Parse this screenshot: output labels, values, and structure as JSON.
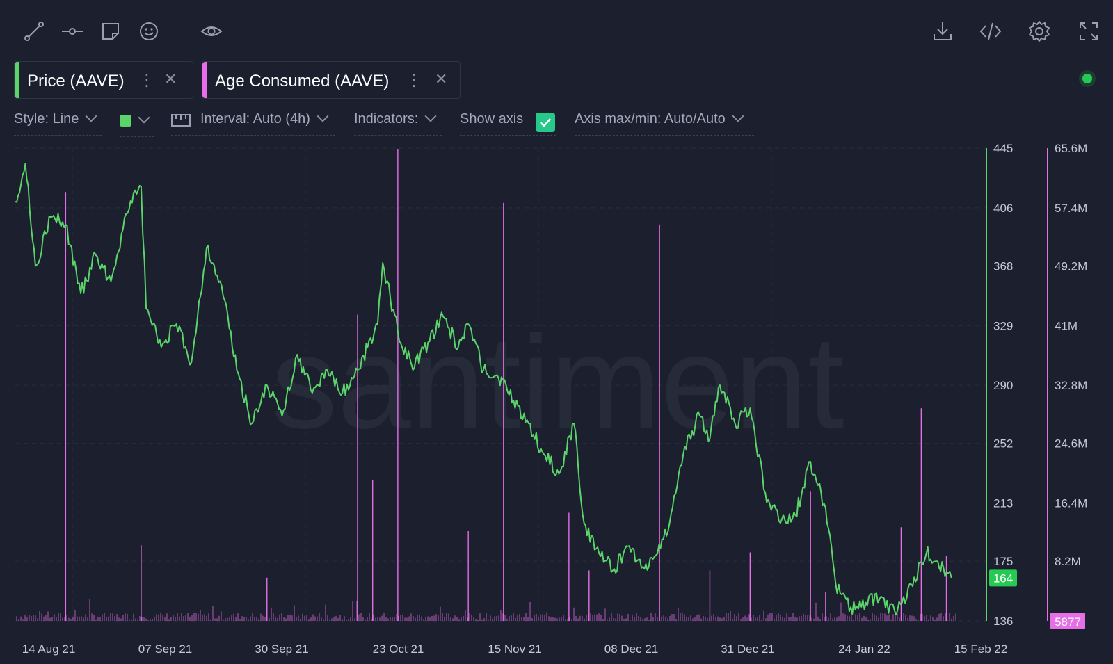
{
  "toolbar": {
    "left_icons": [
      "line-draw-icon",
      "horizontal-line-icon",
      "note-icon",
      "emoji-icon",
      "eye-icon"
    ],
    "right_icons": [
      "download-icon",
      "embed-code-icon",
      "settings-gear-icon",
      "fullscreen-icon"
    ]
  },
  "tabs": [
    {
      "label": "Price (AAVE)",
      "color": "#5bd46a"
    },
    {
      "label": "Age Consumed (AAVE)",
      "color": "#e66fe8"
    }
  ],
  "status": {
    "color": "#26c953"
  },
  "options": {
    "style": "Style: Line",
    "interval": "Interval: Auto (4h)",
    "indicators": "Indicators:",
    "show_axis": "Show axis",
    "show_axis_checked": true,
    "axis_maxmin": "Axis max/min: Auto/Auto"
  },
  "chart_data": {
    "type": "line",
    "watermark": "santiment",
    "x_labels": [
      "14 Aug 21",
      "07 Sep 21",
      "30 Sep 21",
      "23 Oct 21",
      "15 Nov 21",
      "08 Dec 21",
      "31 Dec 21",
      "24 Jan 22",
      "15 Feb 22"
    ],
    "x_range": [
      "2021-08-13",
      "2022-02-16"
    ],
    "grid": true,
    "series": [
      {
        "name": "Price (AAVE)",
        "type": "line",
        "color": "#5bd46a",
        "axis": "left",
        "ticks": [
          445,
          406,
          368,
          329,
          290,
          252,
          213,
          175,
          136
        ],
        "ylim": [
          136,
          445
        ],
        "last_value_label": "164",
        "points": [
          [
            "2021-08-13",
            410
          ],
          [
            "2021-08-15",
            435
          ],
          [
            "2021-08-17",
            368
          ],
          [
            "2021-08-20",
            400
          ],
          [
            "2021-08-23",
            395
          ],
          [
            "2021-08-26",
            350
          ],
          [
            "2021-08-29",
            375
          ],
          [
            "2021-09-01",
            358
          ],
          [
            "2021-09-04",
            402
          ],
          [
            "2021-09-07",
            420
          ],
          [
            "2021-09-08",
            340
          ],
          [
            "2021-09-11",
            315
          ],
          [
            "2021-09-14",
            330
          ],
          [
            "2021-09-17",
            305
          ],
          [
            "2021-09-20",
            380
          ],
          [
            "2021-09-23",
            355
          ],
          [
            "2021-09-26",
            300
          ],
          [
            "2021-09-29",
            265
          ],
          [
            "2021-10-02",
            290
          ],
          [
            "2021-10-05",
            270
          ],
          [
            "2021-10-08",
            310
          ],
          [
            "2021-10-11",
            285
          ],
          [
            "2021-10-14",
            300
          ],
          [
            "2021-10-17",
            285
          ],
          [
            "2021-10-20",
            300
          ],
          [
            "2021-10-22",
            315
          ],
          [
            "2021-10-24",
            330
          ],
          [
            "2021-10-25",
            370
          ],
          [
            "2021-10-28",
            325
          ],
          [
            "2021-10-31",
            300
          ],
          [
            "2021-11-03",
            318
          ],
          [
            "2021-11-06",
            335
          ],
          [
            "2021-11-09",
            315
          ],
          [
            "2021-11-11",
            330
          ],
          [
            "2021-11-14",
            300
          ],
          [
            "2021-11-17",
            295
          ],
          [
            "2021-11-20",
            280
          ],
          [
            "2021-11-23",
            265
          ],
          [
            "2021-11-26",
            245
          ],
          [
            "2021-11-29",
            232
          ],
          [
            "2021-12-02",
            265
          ],
          [
            "2021-12-04",
            200
          ],
          [
            "2021-12-07",
            180
          ],
          [
            "2021-12-10",
            170
          ],
          [
            "2021-12-13",
            185
          ],
          [
            "2021-12-16",
            170
          ],
          [
            "2021-12-18",
            178
          ],
          [
            "2021-12-21",
            200
          ],
          [
            "2021-12-24",
            250
          ],
          [
            "2021-12-27",
            270
          ],
          [
            "2021-12-29",
            255
          ],
          [
            "2021-12-31",
            290
          ],
          [
            "2022-01-03",
            265
          ],
          [
            "2022-01-06",
            275
          ],
          [
            "2022-01-09",
            220
          ],
          [
            "2022-01-12",
            200
          ],
          [
            "2022-01-15",
            205
          ],
          [
            "2022-01-18",
            240
          ],
          [
            "2022-01-21",
            210
          ],
          [
            "2022-01-23",
            160
          ],
          [
            "2022-01-26",
            145
          ],
          [
            "2022-01-29",
            148
          ],
          [
            "2022-02-01",
            152
          ],
          [
            "2022-02-04",
            140
          ],
          [
            "2022-02-07",
            160
          ],
          [
            "2022-02-10",
            180
          ],
          [
            "2022-02-12",
            175
          ],
          [
            "2022-02-14",
            168
          ],
          [
            "2022-02-15",
            164
          ]
        ]
      },
      {
        "name": "Age Consumed (AAVE)",
        "type": "bar",
        "color": "#e66fe8",
        "axis": "right",
        "ticks": [
          "65.6M",
          "57.4M",
          "49.2M",
          "41M",
          "32.8M",
          "24.6M",
          "16.4M",
          "8.2M"
        ],
        "ylim": [
          0,
          65.6
        ],
        "unit": "M",
        "last_value_label": "5877",
        "spikes": [
          [
            "2021-08-23",
            59.5
          ],
          [
            "2021-09-07",
            10.5
          ],
          [
            "2021-10-02",
            6.0
          ],
          [
            "2021-10-20",
            42.5
          ],
          [
            "2021-10-23",
            19.5
          ],
          [
            "2021-10-28",
            65.5
          ],
          [
            "2021-11-11",
            12.5
          ],
          [
            "2021-11-18",
            58.0
          ],
          [
            "2021-12-01",
            15.0
          ],
          [
            "2021-12-05",
            7.0
          ],
          [
            "2021-12-19",
            55.0
          ],
          [
            "2021-12-29",
            7.0
          ],
          [
            "2022-01-06",
            9.5
          ],
          [
            "2022-01-18",
            18.0
          ],
          [
            "2022-01-21",
            4.0
          ],
          [
            "2022-02-05",
            13.0
          ],
          [
            "2022-02-09",
            29.5
          ],
          [
            "2022-02-14",
            9.0
          ]
        ]
      }
    ]
  }
}
